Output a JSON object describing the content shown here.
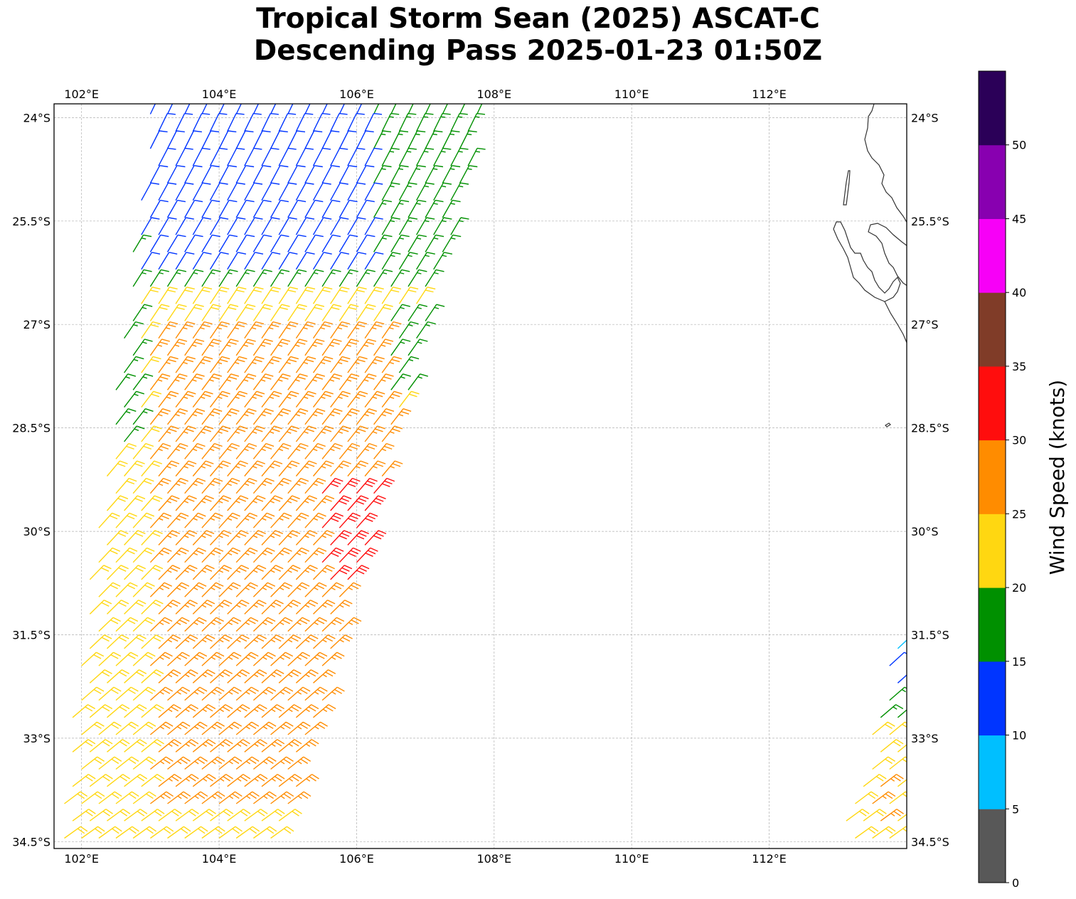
{
  "title": {
    "line1": "Tropical Storm Sean (2025) ASCAT-C",
    "line2": "Descending Pass 2025-01-23 01:50Z"
  },
  "map": {
    "lon_range": [
      101.6,
      114.0
    ],
    "lat_range": [
      -34.6,
      -23.8
    ],
    "lon_ticks": [
      {
        "value": 102,
        "label": "102°E"
      },
      {
        "value": 104,
        "label": "104°E"
      },
      {
        "value": 106,
        "label": "106°E"
      },
      {
        "value": 108,
        "label": "108°E"
      },
      {
        "value": 110,
        "label": "110°E"
      },
      {
        "value": 112,
        "label": "112°E"
      }
    ],
    "lat_ticks": [
      {
        "value": -24,
        "label": "24°S"
      },
      {
        "value": -25.5,
        "label": "25.5°S"
      },
      {
        "value": -27,
        "label": "27°S"
      },
      {
        "value": -28.5,
        "label": "28.5°S"
      },
      {
        "value": -30,
        "label": "30°S"
      },
      {
        "value": -31.5,
        "label": "31.5°S"
      },
      {
        "value": -33,
        "label": "33°S"
      },
      {
        "value": -34.5,
        "label": "34.5°S"
      }
    ],
    "grid": true,
    "coastline_color": "#333333"
  },
  "colorbar": {
    "label": "Wind Speed (knots)",
    "ticks": [
      "0",
      "5",
      "10",
      "15",
      "20",
      "25",
      "30",
      "35",
      "40",
      "45",
      "50"
    ],
    "colors": [
      "#585858",
      "#00bfff",
      "#0035ff",
      "#009000",
      "#ffd711",
      "#ff8c00",
      "#ff0d0d",
      "#803c28",
      "#f700f7",
      "#8800b0",
      "#2b0058"
    ]
  },
  "chart_data": {
    "type": "scatter",
    "description_units": "wind barbs: lon (°E), lat (°), speed (knots)",
    "barb_colors": {
      "green": "#009000",
      "blue": "#0035ff",
      "yellow": "#ffd711",
      "orange": "#ff8c00",
      "red": "#ff0d0d",
      "cyan": "#00bfff"
    },
    "swath_west": {
      "top": {
        "lon_min": 103.0,
        "lon_max": 107.9,
        "lat": -23.9
      },
      "bottom": {
        "lon_min": 101.6,
        "lon_max": 104.9,
        "lat": -34.6
      },
      "wind_regions": [
        {
          "lat_min": -26.2,
          "lat_max": -23.8,
          "lon_min": 102.8,
          "lon_max": 106.2,
          "speed": 13,
          "color": "blue"
        },
        {
          "lat_min": -26.6,
          "lat_max": -23.8,
          "lon_min": 102.0,
          "lon_max": 108.0,
          "speed": 18,
          "color": "green"
        },
        {
          "lat_min": -28.8,
          "lat_max": -26.6,
          "lon_min": 101.6,
          "lon_max": 102.8,
          "speed": 18,
          "color": "green"
        },
        {
          "lat_min": -28.0,
          "lat_max": -26.9,
          "lon_min": 106.4,
          "lon_max": 107.2,
          "speed": 18,
          "color": "green"
        },
        {
          "lat_min": -30.8,
          "lat_max": -29.4,
          "lon_min": 105.4,
          "lon_max": 106.4,
          "speed": 33,
          "color": "red"
        },
        {
          "lat_min": -34.1,
          "lat_max": -27.2,
          "lon_min": 103.0,
          "lon_max": 106.6,
          "speed": 28,
          "color": "orange"
        },
        {
          "lat_min": -34.6,
          "lat_max": -23.8,
          "lon_min": 101.6,
          "lon_max": 108.0,
          "speed": 23,
          "color": "yellow"
        }
      ]
    },
    "swath_east": {
      "top": {
        "lon_min": 113.9,
        "lon_max": 114.0,
        "lat": -31.2
      },
      "bottom": {
        "lon_min": 113.0,
        "lon_max": 114.0,
        "lat": -34.6
      },
      "wind_regions": [
        {
          "lat_min": -31.9,
          "lat_max": -31.0,
          "lon_min": 113.8,
          "lon_max": 114.0,
          "speed": 8,
          "color": "cyan"
        },
        {
          "lat_min": -32.3,
          "lat_max": -31.9,
          "lon_min": 113.7,
          "lon_max": 114.0,
          "speed": 13,
          "color": "blue"
        },
        {
          "lat_min": -32.8,
          "lat_max": -32.3,
          "lon_min": 113.6,
          "lon_max": 114.0,
          "speed": 18,
          "color": "green"
        },
        {
          "lat_min": -34.2,
          "lat_max": -33.6,
          "lon_min": 113.4,
          "lon_max": 113.7,
          "speed": 28,
          "color": "orange"
        },
        {
          "lat_min": -34.6,
          "lat_max": -32.8,
          "lon_min": 113.0,
          "lon_max": 114.0,
          "speed": 23,
          "color": "yellow"
        }
      ]
    }
  }
}
